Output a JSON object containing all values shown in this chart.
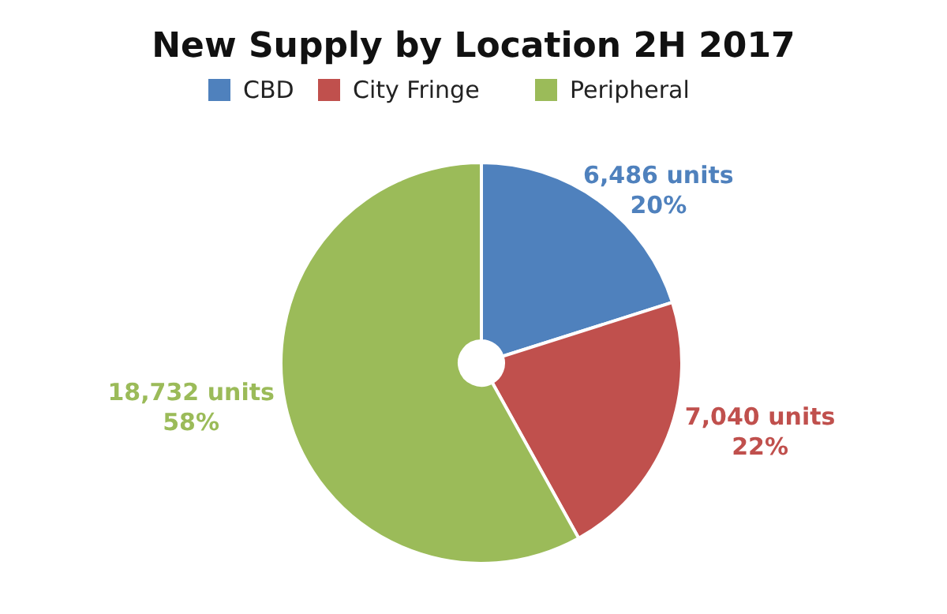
{
  "chart_data": {
    "type": "pie",
    "title": "New Supply by Location 2H 2017",
    "categories": [
      "CBD",
      "City Fringe",
      "Peripheral"
    ],
    "values": [
      6486,
      7040,
      18732
    ],
    "colors": [
      "#4f81bd",
      "#c0504d",
      "#9bbb59"
    ],
    "value_labels": [
      "6,486 units\n20%",
      "7,040 units\n22%",
      "18,732 units\n58%"
    ],
    "legend": "top"
  }
}
